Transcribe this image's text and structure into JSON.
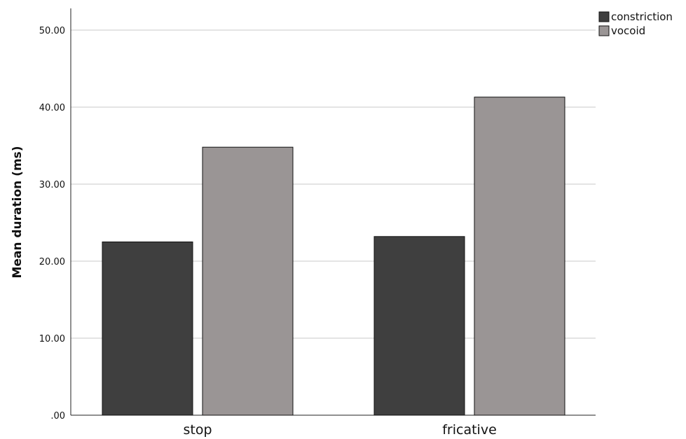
{
  "chart_data": {
    "type": "bar",
    "categories": [
      "stop",
      "fricative"
    ],
    "series": [
      {
        "name": "constriction",
        "values": [
          22.5,
          23.2
        ],
        "color": "#3f3f3f"
      },
      {
        "name": "vocoid",
        "values": [
          34.8,
          41.3
        ],
        "color": "#9a9595"
      }
    ],
    "ylabel": "Mean duration (ms)",
    "xlabel": "",
    "ylim": [
      0,
      50
    ],
    "yticks": [
      ".00",
      "10.00",
      "20.00",
      "30.00",
      "40.00",
      "50.00"
    ],
    "ytick_values": [
      0,
      10,
      20,
      30,
      40,
      50
    ],
    "grid": true,
    "legend_position": "top-right"
  }
}
